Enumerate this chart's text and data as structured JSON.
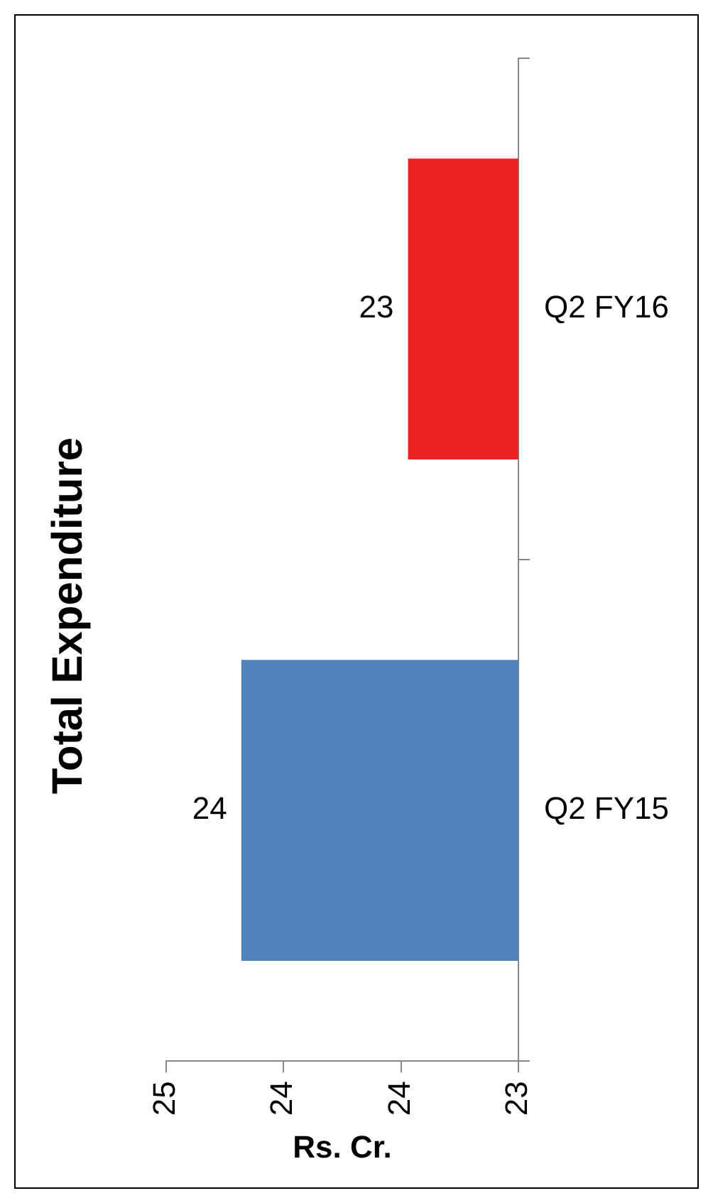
{
  "chart_data": {
    "type": "bar",
    "orientation": "horizontal",
    "title": "Total Expenditure",
    "xlabel": "Rs. Cr.",
    "categories": [
      "Q2 FY16",
      "Q2 FY15"
    ],
    "values": [
      23.47,
      24.18
    ],
    "colors": [
      "#ee2222",
      "#4f81bd"
    ],
    "value_labels": [
      "23",
      "24"
    ],
    "xlim": [
      24.5,
      23
    ],
    "xticks": [
      {
        "value": 24.5,
        "label": "25"
      },
      24,
      {
        "value": 23.5,
        "label": "24"
      },
      23
    ],
    "grid": false,
    "legend": false
  }
}
